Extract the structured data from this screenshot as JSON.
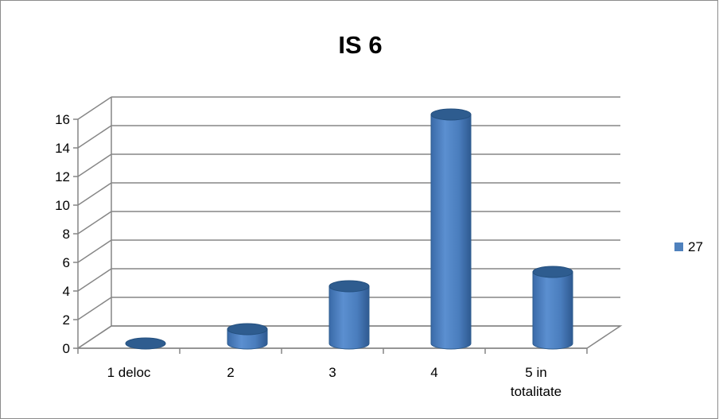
{
  "chart_data": {
    "type": "bar",
    "title": "IS 6",
    "categories": [
      "1 deloc",
      "2",
      "3",
      "4",
      "5 in totalitate"
    ],
    "category_lines": [
      [
        "1 deloc"
      ],
      [
        "2"
      ],
      [
        "3"
      ],
      [
        "4"
      ],
      [
        "5 in",
        "totalitate"
      ]
    ],
    "series": [
      {
        "name": "27",
        "values": [
          0,
          1,
          4,
          16,
          5
        ]
      }
    ],
    "ylim": [
      0,
      16
    ],
    "yticks": [
      0,
      2,
      4,
      6,
      8,
      10,
      12,
      14,
      16
    ],
    "xlabel": "",
    "ylabel": "",
    "grid": true,
    "style": "3d-cylinder",
    "legend_position": "right",
    "colors": {
      "bar": "#4f81bd",
      "bar_dark": "#2e5c8f",
      "grid": "#868686"
    }
  }
}
